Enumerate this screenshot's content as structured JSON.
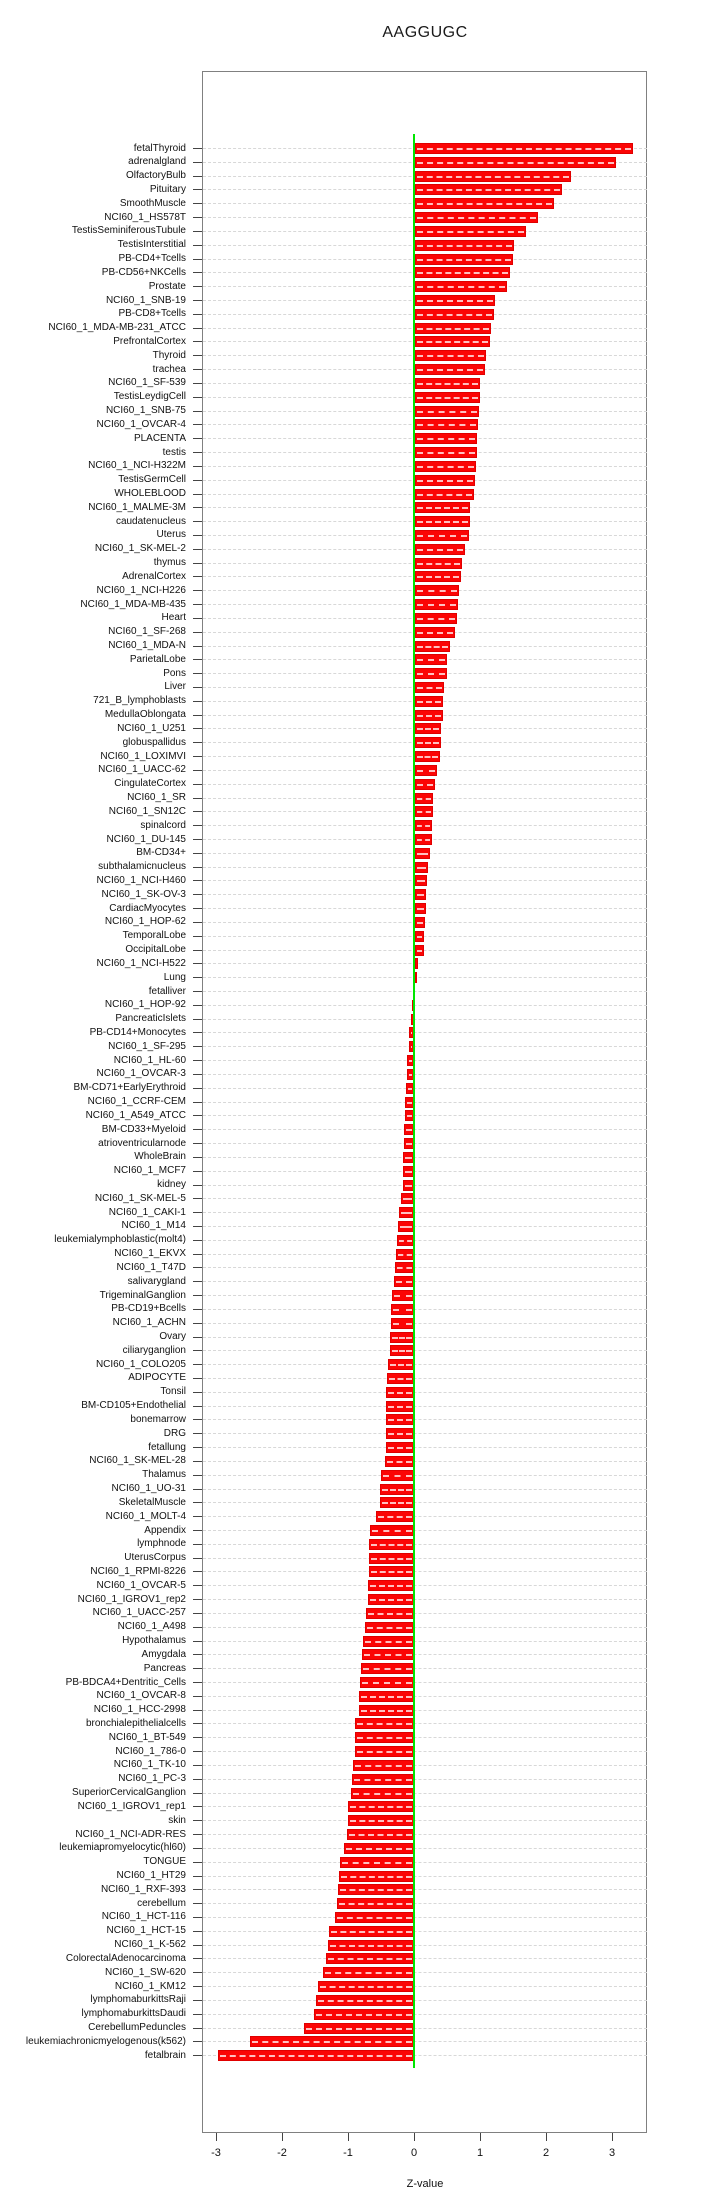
{
  "page": {
    "title": "AAGGUGC"
  },
  "chart_data": {
    "type": "bar",
    "orientation": "horizontal",
    "title": "AAGGUGC",
    "xlabel": "Z-value",
    "x_ticks": [
      -3,
      -2,
      -1,
      0,
      1,
      2,
      3
    ],
    "xlim": [
      -3.3,
      3.53
    ],
    "grid": true,
    "bar_color": "#fb0505",
    "zero_line_color": "#00e600",
    "categories": [
      "fetalThyroid",
      "adrenalgland",
      "OlfactoryBulb",
      "Pituitary",
      "SmoothMuscle",
      "NCI60_1_HS578T",
      "TestisSeminiferousTubule",
      "TestisInterstitial",
      "PB-CD4+Tcells",
      "PB-CD56+NKCells",
      "Prostate",
      "NCI60_1_SNB-19",
      "PB-CD8+Tcells",
      "NCI60_1_MDA-MB-231_ATCC",
      "PrefrontalCortex",
      "Thyroid",
      "trachea",
      "NCI60_1_SF-539",
      "TestisLeydigCell",
      "NCI60_1_SNB-75",
      "NCI60_1_OVCAR-4",
      "PLACENTA",
      "testis",
      "NCI60_1_NCI-H322M",
      "TestisGermCell",
      "WHOLEBLOOD",
      "NCI60_1_MALME-3M",
      "caudatenucleus",
      "Uterus",
      "NCI60_1_SK-MEL-2",
      "thymus",
      "AdrenalCortex",
      "NCI60_1_NCI-H226",
      "NCI60_1_MDA-MB-435",
      "Heart",
      "NCI60_1_SF-268",
      "NCI60_1_MDA-N",
      "ParietalLobe",
      "Pons",
      "Liver",
      "721_B_lymphoblasts",
      "MedullaOblongata",
      "NCI60_1_U251",
      "globuspallidus",
      "NCI60_1_LOXIMVI",
      "NCI60_1_UACC-62",
      "CingulateCortex",
      "NCI60_1_SR",
      "NCI60_1_SN12C",
      "spinalcord",
      "NCI60_1_DU-145",
      "BM-CD34+",
      "subthalamicnucleus",
      "NCI60_1_NCI-H460",
      "NCI60_1_SK-OV-3",
      "CardiacMyocytes",
      "NCI60_1_HOP-62",
      "TemporalLobe",
      "OccipitalLobe",
      "NCI60_1_NCI-H522",
      "Lung",
      "fetalliver",
      "NCI60_1_HOP-92",
      "PancreaticIslets",
      "PB-CD14+Monocytes",
      "NCI60_1_SF-295",
      "NCI60_1_HL-60",
      "NCI60_1_OVCAR-3",
      "BM-CD71+EarlyErythroid",
      "NCI60_1_CCRF-CEM",
      "NCI60_1_A549_ATCC",
      "BM-CD33+Myeloid",
      "atrioventricularnode",
      "WholeBrain",
      "NCI60_1_MCF7",
      "kidney",
      "NCI60_1_SK-MEL-5",
      "NCI60_1_CAKI-1",
      "NCI60_1_M14",
      "leukemialymphoblastic(molt4)",
      "NCI60_1_EKVX",
      "NCI60_1_T47D",
      "salivarygland",
      "TrigeminalGanglion",
      "PB-CD19+Bcells",
      "NCI60_1_ACHN",
      "Ovary",
      "ciliaryganglion",
      "NCI60_1_COLO205",
      "ADIPOCYTE",
      "Tonsil",
      "BM-CD105+Endothelial",
      "bonemarrow",
      "DRG",
      "fetallung",
      "NCI60_1_SK-MEL-28",
      "Thalamus",
      "NCI60_1_UO-31",
      "SkeletalMuscle",
      "NCI60_1_MOLT-4",
      "Appendix",
      "lymphnode",
      "UterusCorpus",
      "NCI60_1_RPMI-8226",
      "NCI60_1_OVCAR-5",
      "NCI60_1_IGROV1_rep2",
      "NCI60_1_UACC-257",
      "NCI60_1_A498",
      "Hypothalamus",
      "Amygdala",
      "Pancreas",
      "PB-BDCA4+Dentritic_Cells",
      "NCI60_1_OVCAR-8",
      "NCI60_1_HCC-2998",
      "bronchialepithelialcells",
      "NCI60_1_BT-549",
      "NCI60_1_786-0",
      "NCI60_1_TK-10",
      "NCI60_1_PC-3",
      "SuperiorCervicalGanglion",
      "NCI60_1_IGROV1_rep1",
      "skin",
      "NCI60_1_NCI-ADR-RES",
      "leukemiapromyelocytic(hl60)",
      "TONGUE",
      "NCI60_1_HT29",
      "NCI60_1_RXF-393",
      "cerebellum",
      "NCI60_1_HCT-116",
      "NCI60_1_HCT-15",
      "NCI60_1_K-562",
      "ColorectalAdenocarcinoma",
      "NCI60_1_SW-620",
      "NCI60_1_KM12",
      "lymphomaburkittsRaji",
      "lymphomaburkittsDaudi",
      "CerebellumPeduncles",
      "leukemiachronicmyelogenous(k562)",
      "fetalbrain"
    ],
    "values": [
      3.3,
      3.05,
      2.37,
      2.22,
      2.11,
      1.86,
      1.68,
      1.5,
      1.48,
      1.44,
      1.39,
      1.21,
      1.19,
      1.15,
      1.13,
      1.08,
      1.06,
      0.99,
      0.98,
      0.97,
      0.95,
      0.94,
      0.94,
      0.93,
      0.91,
      0.89,
      0.84,
      0.83,
      0.82,
      0.76,
      0.71,
      0.69,
      0.67,
      0.65,
      0.63,
      0.6,
      0.53,
      0.49,
      0.48,
      0.44,
      0.43,
      0.42,
      0.39,
      0.39,
      0.38,
      0.34,
      0.31,
      0.28,
      0.27,
      0.25,
      0.25,
      0.22,
      0.2,
      0.18,
      0.17,
      0.16,
      0.15,
      0.14,
      0.14,
      0.05,
      0.01,
      -0.02,
      -0.03,
      -0.05,
      -0.07,
      -0.08,
      -0.1,
      -0.11,
      -0.12,
      -0.14,
      -0.14,
      -0.15,
      -0.15,
      -0.17,
      -0.17,
      -0.17,
      -0.19,
      -0.22,
      -0.24,
      -0.26,
      -0.28,
      -0.29,
      -0.31,
      -0.34,
      -0.35,
      -0.35,
      -0.36,
      -0.37,
      -0.4,
      -0.41,
      -0.42,
      -0.42,
      -0.43,
      -0.43,
      -0.43,
      -0.44,
      -0.5,
      -0.51,
      -0.52,
      -0.57,
      -0.66,
      -0.68,
      -0.68,
      -0.68,
      -0.69,
      -0.7,
      -0.73,
      -0.74,
      -0.77,
      -0.79,
      -0.81,
      -0.82,
      -0.84,
      -0.84,
      -0.89,
      -0.9,
      -0.9,
      -0.92,
      -0.94,
      -0.95,
      -1.0,
      -1.0,
      -1.02,
      -1.06,
      -1.12,
      -1.14,
      -1.15,
      -1.16,
      -1.2,
      -1.29,
      -1.3,
      -1.34,
      -1.38,
      -1.46,
      -1.49,
      -1.51,
      -1.66,
      -2.48,
      -2.97
    ]
  }
}
